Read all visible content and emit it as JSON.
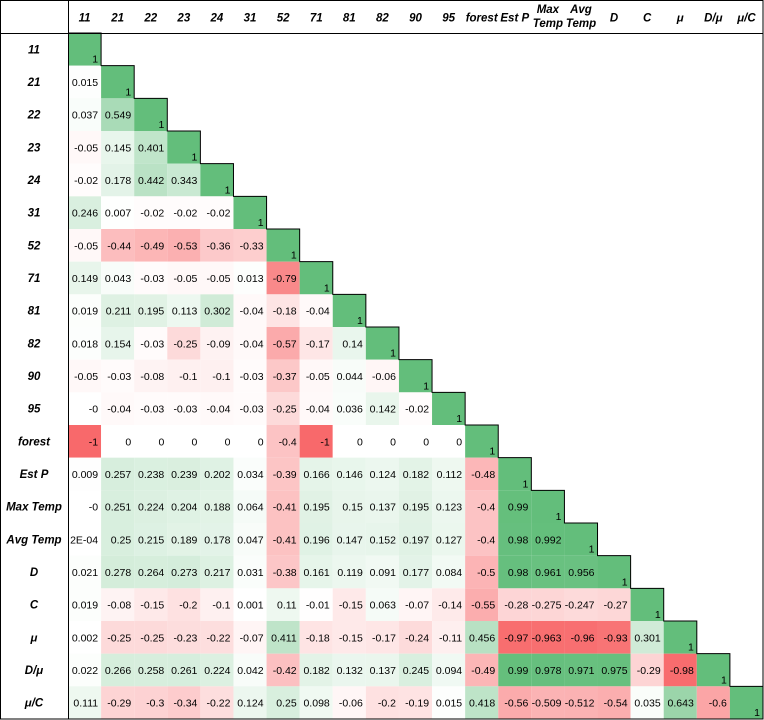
{
  "chart_data": {
    "type": "heatmap",
    "layout": "lower-triangular correlation matrix",
    "labels": [
      "11",
      "21",
      "22",
      "23",
      "24",
      "31",
      "52",
      "71",
      "81",
      "82",
      "90",
      "95",
      "forest",
      "Est P",
      "Max Temp",
      "Avg Temp",
      "D",
      "C",
      "μ",
      "D/μ",
      "μ/C"
    ],
    "values": [
      [
        "1"
      ],
      [
        "0.015",
        "1"
      ],
      [
        "0.037",
        "0.549",
        "1"
      ],
      [
        "-0.05",
        "0.145",
        "0.401",
        "1"
      ],
      [
        "-0.02",
        "0.178",
        "0.442",
        "0.343",
        "1"
      ],
      [
        "0.246",
        "0.007",
        "-0.02",
        "-0.02",
        "-0.02",
        "1"
      ],
      [
        "-0.05",
        "-0.44",
        "-0.49",
        "-0.53",
        "-0.36",
        "-0.33",
        "1"
      ],
      [
        "0.149",
        "0.043",
        "-0.03",
        "-0.05",
        "-0.05",
        "0.013",
        "-0.79",
        "1"
      ],
      [
        "0.019",
        "0.211",
        "0.195",
        "0.113",
        "0.302",
        "-0.04",
        "-0.18",
        "-0.04",
        "1"
      ],
      [
        "0.018",
        "0.154",
        "-0.03",
        "-0.25",
        "-0.09",
        "-0.04",
        "-0.57",
        "-0.17",
        "0.14",
        "1"
      ],
      [
        "-0.05",
        "-0.03",
        "-0.08",
        "-0.1",
        "-0.1",
        "-0.03",
        "-0.37",
        "-0.05",
        "0.044",
        "-0.06",
        "1"
      ],
      [
        "-0",
        "-0.04",
        "-0.03",
        "-0.03",
        "-0.04",
        "-0.03",
        "-0.25",
        "-0.04",
        "0.036",
        "0.142",
        "-0.02",
        "1"
      ],
      [
        "-1",
        "0",
        "0",
        "0",
        "0",
        "0",
        "-0.4",
        "-1",
        "0",
        "0",
        "0",
        "0",
        "1"
      ],
      [
        "0.009",
        "0.257",
        "0.238",
        "0.239",
        "0.202",
        "0.034",
        "-0.39",
        "0.166",
        "0.146",
        "0.124",
        "0.182",
        "0.112",
        "-0.48",
        "1"
      ],
      [
        "-0",
        "0.251",
        "0.224",
        "0.204",
        "0.188",
        "0.064",
        "-0.41",
        "0.195",
        "0.15",
        "0.137",
        "0.195",
        "0.123",
        "-0.4",
        "0.99",
        "1"
      ],
      [
        "2E-04",
        "0.25",
        "0.215",
        "0.189",
        "0.178",
        "0.047",
        "-0.41",
        "0.196",
        "0.147",
        "0.152",
        "0.197",
        "0.127",
        "-0.4",
        "0.98",
        "0.992",
        "1"
      ],
      [
        "0.021",
        "0.278",
        "0.264",
        "0.273",
        "0.217",
        "0.031",
        "-0.38",
        "0.161",
        "0.119",
        "0.091",
        "0.177",
        "0.084",
        "-0.5",
        "0.98",
        "0.961",
        "0.956",
        "1"
      ],
      [
        "0.019",
        "-0.08",
        "-0.15",
        "-0.2",
        "-0.1",
        "0.001",
        "0.11",
        "-0.01",
        "-0.15",
        "0.063",
        "-0.07",
        "-0.14",
        "-0.55",
        "-0.28",
        "-0.275",
        "-0.247",
        "-0.27",
        "1"
      ],
      [
        "0.002",
        "-0.25",
        "-0.25",
        "-0.23",
        "-0.22",
        "-0.07",
        "0.411",
        "-0.18",
        "-0.15",
        "-0.17",
        "-0.24",
        "-0.11",
        "0.456",
        "-0.97",
        "-0.963",
        "-0.96",
        "-0.93",
        "0.301",
        "1"
      ],
      [
        "0.022",
        "0.266",
        "0.258",
        "0.261",
        "0.224",
        "0.042",
        "-0.42",
        "0.182",
        "0.132",
        "0.137",
        "0.245",
        "0.094",
        "-0.49",
        "0.99",
        "0.978",
        "0.971",
        "0.975",
        "-0.29",
        "-0.98",
        "1"
      ],
      [
        "0.111",
        "-0.29",
        "-0.3",
        "-0.34",
        "-0.22",
        "0.124",
        "0.25",
        "0.098",
        "-0.06",
        "-0.2",
        "-0.19",
        "0.015",
        "0.418",
        "-0.56",
        "-0.509",
        "-0.512",
        "-0.54",
        "0.035",
        "0.643",
        "-0.6",
        "1"
      ]
    ],
    "colors": {
      "positive": "#63be7b",
      "negative": "#f8696b",
      "neutral": "#ffffff"
    },
    "grid": true
  }
}
